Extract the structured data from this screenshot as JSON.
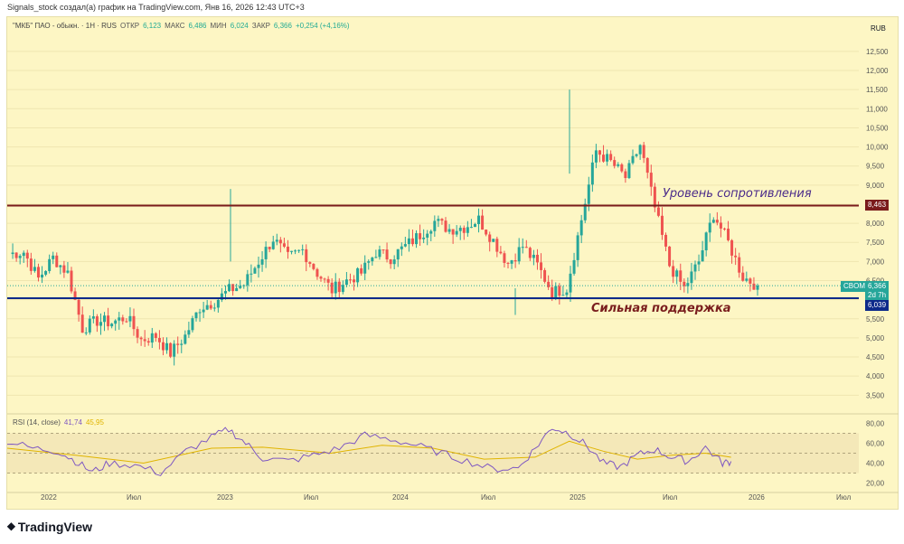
{
  "header": {
    "caption": "Signals_stock создал(а) график на TradingView.com, Янв 16, 2026 12:43 UTC+3"
  },
  "legend": {
    "symbol": "\"МКБ\" ПАО - обыкн. · 1Н · RUS",
    "open_label": "ОТКР",
    "open_value": "6,123",
    "high_label": "МАКС",
    "high_value": "6,486",
    "low_label": "МИН",
    "low_value": "6,024",
    "close_label": "ЗАКР",
    "close_value": "6,366",
    "change": "+0,254 (+4,16%)"
  },
  "currency": "RUB",
  "price_axis": {
    "ticks": [
      "12,500",
      "12,000",
      "11,500",
      "11,000",
      "10,500",
      "10,000",
      "9,500",
      "9,000",
      "8,500",
      "8,000",
      "7,500",
      "7,000",
      "6,500",
      "6,000",
      "5,500",
      "5,000",
      "4,500",
      "4,000",
      "3,500"
    ]
  },
  "resistance_tag": "8,463",
  "support_tag": "6,039",
  "price_tag": {
    "symbol": "CBOM",
    "value": "6,366",
    "countdown": "2d 7h"
  },
  "annotations": {
    "resistance": "Уровень сопротивления",
    "support": "Сильная поддержка"
  },
  "rsi": {
    "label": "RSI (14, close)",
    "value1": "41,74",
    "value2": "45,95",
    "ticks": [
      "80,00",
      "60,00",
      "40,00",
      "20,00"
    ]
  },
  "time_axis": {
    "labels": [
      "2022",
      "Июл",
      "2023",
      "Июл",
      "2024",
      "Июл",
      "2025",
      "Июл",
      "2026",
      "Июл"
    ]
  },
  "footer": {
    "brand": "TradingView"
  },
  "colors": {
    "background": "#fdf6c4",
    "up": "#26a69a",
    "down": "#ef5350",
    "resistance_line": "#7a1b1b",
    "support_line": "#0d2a8a",
    "rsi_line": "#7e57c2",
    "rsi_ma": "#e0b400"
  },
  "chart_data": {
    "type": "candlestick",
    "title": "\"МКБ\" ПАО - обыкн. · 1Н · RUS",
    "ylim": [
      3200,
      12900
    ],
    "y_unit": "RUB",
    "levels": [
      {
        "name": "Уровень сопротивления",
        "value": 8.463
      },
      {
        "name": "Сильная поддержка",
        "value": 6.039
      }
    ],
    "weekly_close_trace": [
      [
        "2021-10",
        7.2
      ],
      [
        "2021-11",
        7.25
      ],
      [
        "2021-12",
        6.55
      ],
      [
        "2022-01",
        7.1
      ],
      [
        "2022-02",
        6.7
      ],
      [
        "2022-03",
        5.25
      ],
      [
        "2022-04",
        5.45
      ],
      [
        "2022-05",
        5.4
      ],
      [
        "2022-06",
        5.55
      ],
      [
        "2022-07",
        4.95
      ],
      [
        "2022-08",
        5.05
      ],
      [
        "2022-09",
        4.6
      ],
      [
        "2022-10",
        5.05
      ],
      [
        "2022-11",
        5.8
      ],
      [
        "2022-12",
        5.95
      ],
      [
        "2023-01",
        6.25
      ],
      [
        "2023-02",
        6.4
      ],
      [
        "2023-03",
        7.0
      ],
      [
        "2023-04",
        7.6
      ],
      [
        "2023-05",
        7.1
      ],
      [
        "2023-06",
        7.3
      ],
      [
        "2023-07",
        6.7
      ],
      [
        "2023-08",
        6.25
      ],
      [
        "2023-09",
        6.5
      ],
      [
        "2023-10",
        6.7
      ],
      [
        "2023-11",
        7.25
      ],
      [
        "2023-12",
        7.1
      ],
      [
        "2024-01",
        7.4
      ],
      [
        "2024-02",
        7.7
      ],
      [
        "2024-03",
        8.05
      ],
      [
        "2024-04",
        7.85
      ],
      [
        "2024-05",
        7.9
      ],
      [
        "2024-06",
        8.1
      ],
      [
        "2024-07",
        7.55
      ],
      [
        "2024-08",
        6.95
      ],
      [
        "2024-09",
        7.4
      ],
      [
        "2024-10",
        6.9
      ],
      [
        "2024-11",
        6.2
      ],
      [
        "2024-12",
        6.3
      ],
      [
        "2025-01",
        8.1
      ],
      [
        "2025-02",
        9.9
      ],
      [
        "2025-03",
        9.6
      ],
      [
        "2025-04",
        9.2
      ],
      [
        "2025-05",
        10.05
      ],
      [
        "2025-06",
        8.4
      ],
      [
        "2025-07",
        6.9
      ],
      [
        "2025-08",
        6.3
      ],
      [
        "2025-09",
        7.0
      ],
      [
        "2025-10",
        8.25
      ],
      [
        "2025-11",
        7.5
      ],
      [
        "2025-12",
        6.6
      ],
      [
        "2026-01",
        6.37
      ]
    ],
    "last_candle": {
      "open": 6.123,
      "high": 6.486,
      "low": 6.024,
      "close": 6.366
    },
    "rsi": {
      "ylim": [
        15,
        85
      ],
      "bands": [
        70,
        50,
        30
      ],
      "trace": [
        [
          0,
          62
        ],
        [
          0.03,
          55
        ],
        [
          0.06,
          52
        ],
        [
          0.08,
          42
        ],
        [
          0.1,
          31
        ],
        [
          0.12,
          40
        ],
        [
          0.15,
          38
        ],
        [
          0.18,
          30
        ],
        [
          0.21,
          52
        ],
        [
          0.24,
          66
        ],
        [
          0.26,
          74
        ],
        [
          0.28,
          60
        ],
        [
          0.3,
          45
        ],
        [
          0.33,
          42
        ],
        [
          0.36,
          48
        ],
        [
          0.39,
          55
        ],
        [
          0.42,
          68
        ],
        [
          0.45,
          64
        ],
        [
          0.48,
          58
        ],
        [
          0.51,
          50
        ],
        [
          0.54,
          42
        ],
        [
          0.57,
          34
        ],
        [
          0.6,
          35
        ],
        [
          0.62,
          55
        ],
        [
          0.64,
          76
        ],
        [
          0.66,
          70
        ],
        [
          0.68,
          58
        ],
        [
          0.7,
          40
        ],
        [
          0.72,
          36
        ],
        [
          0.74,
          48
        ],
        [
          0.76,
          54
        ],
        [
          0.78,
          46
        ],
        [
          0.8,
          42
        ],
        [
          0.82,
          56
        ],
        [
          0.84,
          40
        ],
        [
          0.85,
          41.74
        ]
      ],
      "ma_trace": [
        [
          0,
          55
        ],
        [
          0.08,
          48
        ],
        [
          0.16,
          40
        ],
        [
          0.24,
          55
        ],
        [
          0.3,
          56
        ],
        [
          0.38,
          50
        ],
        [
          0.44,
          58
        ],
        [
          0.5,
          55
        ],
        [
          0.56,
          44
        ],
        [
          0.62,
          46
        ],
        [
          0.66,
          62
        ],
        [
          0.7,
          52
        ],
        [
          0.74,
          44
        ],
        [
          0.78,
          48
        ],
        [
          0.82,
          50
        ],
        [
          0.85,
          45.95
        ]
      ]
    },
    "xlabel": "",
    "ylabel": ""
  }
}
